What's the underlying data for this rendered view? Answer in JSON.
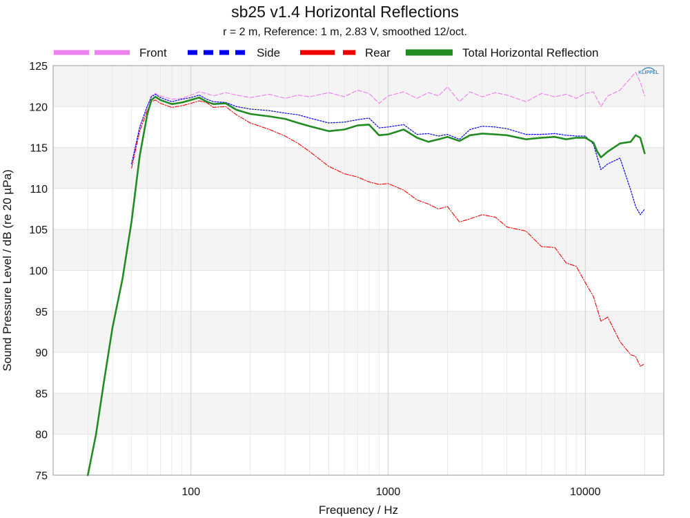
{
  "chart_data": {
    "type": "line",
    "title": "sb25 v1.4 Horizontal Reflections",
    "subtitle": "r = 2 m,  Reference: 1 m, 2.83 V, smoothed 12/oct.",
    "xlabel": "Frequency / Hz",
    "ylabel": "Sound Pressure Level / dB (re 20 µPa)",
    "xscale": "log",
    "xlim": [
      20,
      25000
    ],
    "ylim": [
      75,
      125
    ],
    "xticks": [
      100,
      1000,
      10000
    ],
    "xtick_labels": [
      "100",
      "1000",
      "10000"
    ],
    "yticks": [
      75,
      80,
      85,
      90,
      95,
      100,
      105,
      110,
      115,
      120,
      125
    ],
    "yticks_labels": [
      "75",
      "80",
      "85",
      "90",
      "95",
      "100",
      "105",
      "110",
      "115",
      "120",
      "125"
    ],
    "grid": true,
    "legend_position": "top",
    "logo": "KLIPPEL",
    "series": [
      {
        "name": "Front",
        "color": "#ee82ee",
        "style": "dash",
        "x": [
          50,
          55,
          60,
          63,
          66,
          70,
          80,
          90,
          100,
          110,
          120,
          130,
          150,
          170,
          200,
          250,
          300,
          350,
          400,
          500,
          600,
          700,
          800,
          900,
          1000,
          1200,
          1400,
          1600,
          1800,
          2000,
          2300,
          2600,
          3000,
          3500,
          4000,
          5000,
          6000,
          7000,
          8000,
          9000,
          10000,
          11000,
          12000,
          13000,
          15000,
          17000,
          18000,
          19000,
          20000
        ],
        "y": [
          113,
          117.5,
          120,
          121.3,
          121.6,
          121.3,
          120.9,
          121.0,
          121.4,
          121.8,
          121.6,
          121.3,
          121.7,
          121.4,
          121.1,
          121.5,
          121.0,
          121.4,
          121.2,
          121.7,
          121.2,
          122.0,
          121.6,
          120.4,
          121.3,
          121.8,
          121.0,
          121.7,
          121.3,
          122.4,
          120.6,
          121.8,
          121.2,
          121.7,
          121.4,
          120.6,
          121.6,
          121.2,
          121.5,
          121.0,
          121.6,
          121.8,
          120.0,
          121.3,
          122.0,
          123.5,
          124.2,
          123.0,
          121.3
        ]
      },
      {
        "name": "Side",
        "color": "#0000ee",
        "style": "dot",
        "x": [
          50,
          55,
          60,
          63,
          66,
          70,
          80,
          90,
          100,
          110,
          120,
          130,
          150,
          170,
          200,
          250,
          300,
          350,
          400,
          500,
          600,
          700,
          800,
          900,
          1000,
          1200,
          1400,
          1600,
          1800,
          2000,
          2300,
          2600,
          3000,
          3500,
          4000,
          5000,
          6000,
          7000,
          8000,
          9000,
          10000,
          11000,
          12000,
          13000,
          15000,
          17000,
          18000,
          19000,
          20000
        ],
        "y": [
          113,
          117.5,
          120,
          121.2,
          121.5,
          121.1,
          120.6,
          120.9,
          121.1,
          121.4,
          120.9,
          120.6,
          120.5,
          120.0,
          119.7,
          119.5,
          119.2,
          119.0,
          118.6,
          118.0,
          118.1,
          118.4,
          118.6,
          117.4,
          117.5,
          117.8,
          116.6,
          116.7,
          116.4,
          116.6,
          116.0,
          117.2,
          117.6,
          117.5,
          117.3,
          116.6,
          116.6,
          116.7,
          116.5,
          116.4,
          116.4,
          115.4,
          112.3,
          113.0,
          113.7,
          109.8,
          107.8,
          106.8,
          107.5
        ]
      },
      {
        "name": "Rear",
        "color": "#ee0000",
        "style": "dashdot",
        "x": [
          50,
          55,
          60,
          63,
          66,
          70,
          80,
          90,
          100,
          110,
          120,
          130,
          150,
          170,
          200,
          250,
          300,
          350,
          400,
          500,
          600,
          700,
          800,
          900,
          1000,
          1200,
          1400,
          1600,
          1800,
          2000,
          2300,
          2600,
          3000,
          3500,
          4000,
          5000,
          6000,
          7000,
          8000,
          9000,
          10000,
          11000,
          12000,
          13000,
          15000,
          17000,
          18000,
          19000,
          20000
        ],
        "y": [
          112.5,
          117,
          119.5,
          120.6,
          120.8,
          120.4,
          119.9,
          120.1,
          120.4,
          120.7,
          120.5,
          119.9,
          120.0,
          119.0,
          118.0,
          117.2,
          116.4,
          115.5,
          114.5,
          112.7,
          111.8,
          111.4,
          110.8,
          110.5,
          110.6,
          109.8,
          108.6,
          108.1,
          107.5,
          107.8,
          105.9,
          106.3,
          106.8,
          106.5,
          105.3,
          104.8,
          102.9,
          102.8,
          100.9,
          100.5,
          98.5,
          96.8,
          93.8,
          94.3,
          91.3,
          89.7,
          89.5,
          88.3,
          88.6
        ]
      },
      {
        "name": "Total Horizontal Reflection",
        "color": "#228b22",
        "style": "solid",
        "x": [
          30,
          33,
          36,
          40,
          45,
          50,
          55,
          60,
          63,
          66,
          70,
          80,
          90,
          100,
          110,
          120,
          130,
          150,
          170,
          200,
          250,
          300,
          350,
          400,
          500,
          600,
          700,
          800,
          900,
          1000,
          1200,
          1400,
          1600,
          1800,
          2000,
          2300,
          2600,
          3000,
          3500,
          4000,
          5000,
          6000,
          7000,
          8000,
          9000,
          10000,
          11000,
          11500,
          12000,
          13000,
          15000,
          17000,
          18000,
          19000,
          20000
        ],
        "y": [
          75,
          80,
          86,
          93,
          99,
          106,
          114,
          119,
          120.8,
          121.2,
          120.8,
          120.3,
          120.5,
          120.8,
          121.1,
          120.6,
          120.3,
          120.4,
          119.6,
          119.1,
          118.8,
          118.5,
          118.0,
          117.6,
          117.0,
          117.2,
          117.7,
          117.8,
          116.5,
          116.6,
          117.2,
          116.2,
          115.7,
          116.0,
          116.3,
          115.8,
          116.5,
          116.7,
          116.6,
          116.5,
          116.0,
          116.2,
          116.3,
          116.0,
          116.2,
          116.2,
          115.6,
          114.5,
          113.8,
          114.5,
          115.5,
          115.7,
          116.5,
          116.2,
          114.3
        ]
      }
    ]
  }
}
